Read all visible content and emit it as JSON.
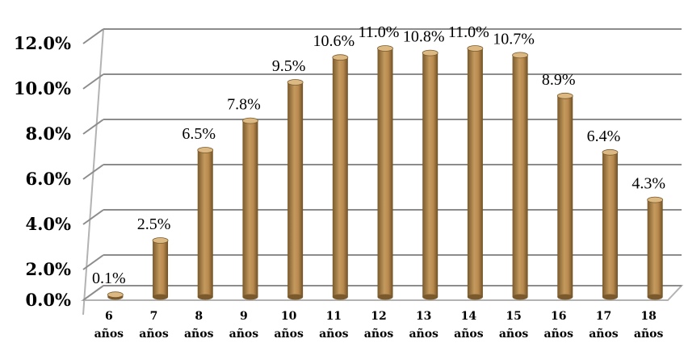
{
  "chart_data": {
    "type": "bar",
    "categories": [
      [
        "6",
        "años"
      ],
      [
        "7",
        "años"
      ],
      [
        "8",
        "años"
      ],
      [
        "9",
        "años"
      ],
      [
        "10",
        "años"
      ],
      [
        "11",
        "años"
      ],
      [
        "12",
        "años"
      ],
      [
        "13",
        "años"
      ],
      [
        "14",
        "años"
      ],
      [
        "15",
        "años"
      ],
      [
        "16",
        "años"
      ],
      [
        "17",
        "años"
      ],
      [
        "18",
        "años"
      ]
    ],
    "values": [
      0.1,
      2.5,
      6.5,
      7.8,
      9.5,
      10.6,
      11.0,
      10.8,
      11.0,
      10.7,
      8.9,
      6.4,
      4.3
    ],
    "data_labels": [
      "0.1%",
      "2.5%",
      "6.5%",
      "7.8%",
      "9.5%",
      "10.6%",
      "11.0%",
      "10.8%",
      "11.0%",
      "10.7%",
      "8.9%",
      "6.4%",
      "4.3%"
    ],
    "yticks": [
      0,
      2,
      4,
      6,
      8,
      10,
      12
    ],
    "ytick_labels": [
      "0.0%",
      "2.0%",
      "4.0%",
      "6.0%",
      "8.0%",
      "10.0%",
      "12.0%"
    ],
    "ylim": [
      0,
      12
    ],
    "title": "",
    "xlabel": "",
    "ylabel": "",
    "grid": true,
    "legend": "none",
    "colors": {
      "bar_dark": "#7a5a2c",
      "bar_mid": "#b98a4f",
      "bar_light": "#dcb883",
      "grid": "#8c8c8c",
      "wall": "#b3b3b3"
    }
  }
}
